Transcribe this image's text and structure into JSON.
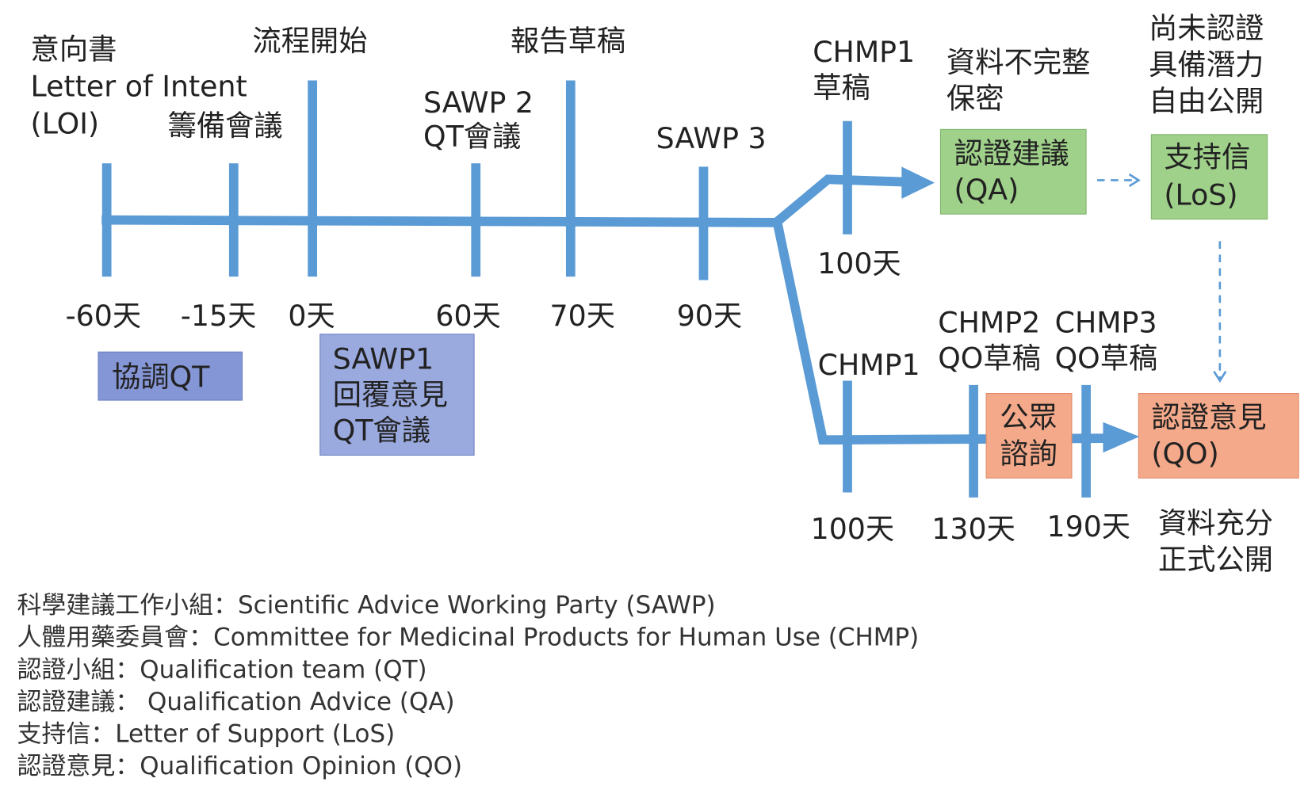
{
  "top_labels": [
    [
      "意向書",
      "Letter of Intent",
      "(LOI)"
    ],
    [
      "籌備會議"
    ],
    [
      "流程開始"
    ],
    [
      "SAWP 2",
      "QT會議"
    ],
    [
      "報告草稿"
    ],
    [
      "SAWP 3"
    ],
    [
      "CHMP1",
      "草稿"
    ],
    [
      "資料不完整",
      "保密"
    ],
    [
      "尚未認證",
      "具備潛力",
      "自由公開"
    ]
  ],
  "days": [
    "-60天",
    "-15天",
    "0天",
    "60天",
    "70天",
    "90天",
    "100天",
    "100天",
    "130天",
    "190天"
  ],
  "boxes": [
    [
      "協調QT"
    ],
    [
      "SAWP1",
      "回覆意見",
      "QT會議"
    ],
    [
      "認證建議",
      "(QA)"
    ],
    [
      "支持信",
      "(LoS)"
    ],
    [
      "公眾",
      "諮詢"
    ],
    [
      "認證意見",
      "(QO)"
    ]
  ],
  "lower_labels": [
    [
      "CHMP1"
    ],
    [
      "CHMP2",
      "QO草稿"
    ],
    [
      "CHMP3",
      "QO草稿"
    ],
    [
      "資料充分",
      "正式公開"
    ]
  ],
  "legend": [
    "科學建議工作小組：Scientific Advice Working Party (SAWP)",
    "人體用藥委員會：Committee for Medicinal Products for Human Use (CHMP)",
    "認證小組：Qualification team (QT)",
    "認證建議： Qualification Advice (QA)",
    "支持信：Letter of Support (LoS)",
    "認證意見：Qualification Opinion (QO)"
  ]
}
